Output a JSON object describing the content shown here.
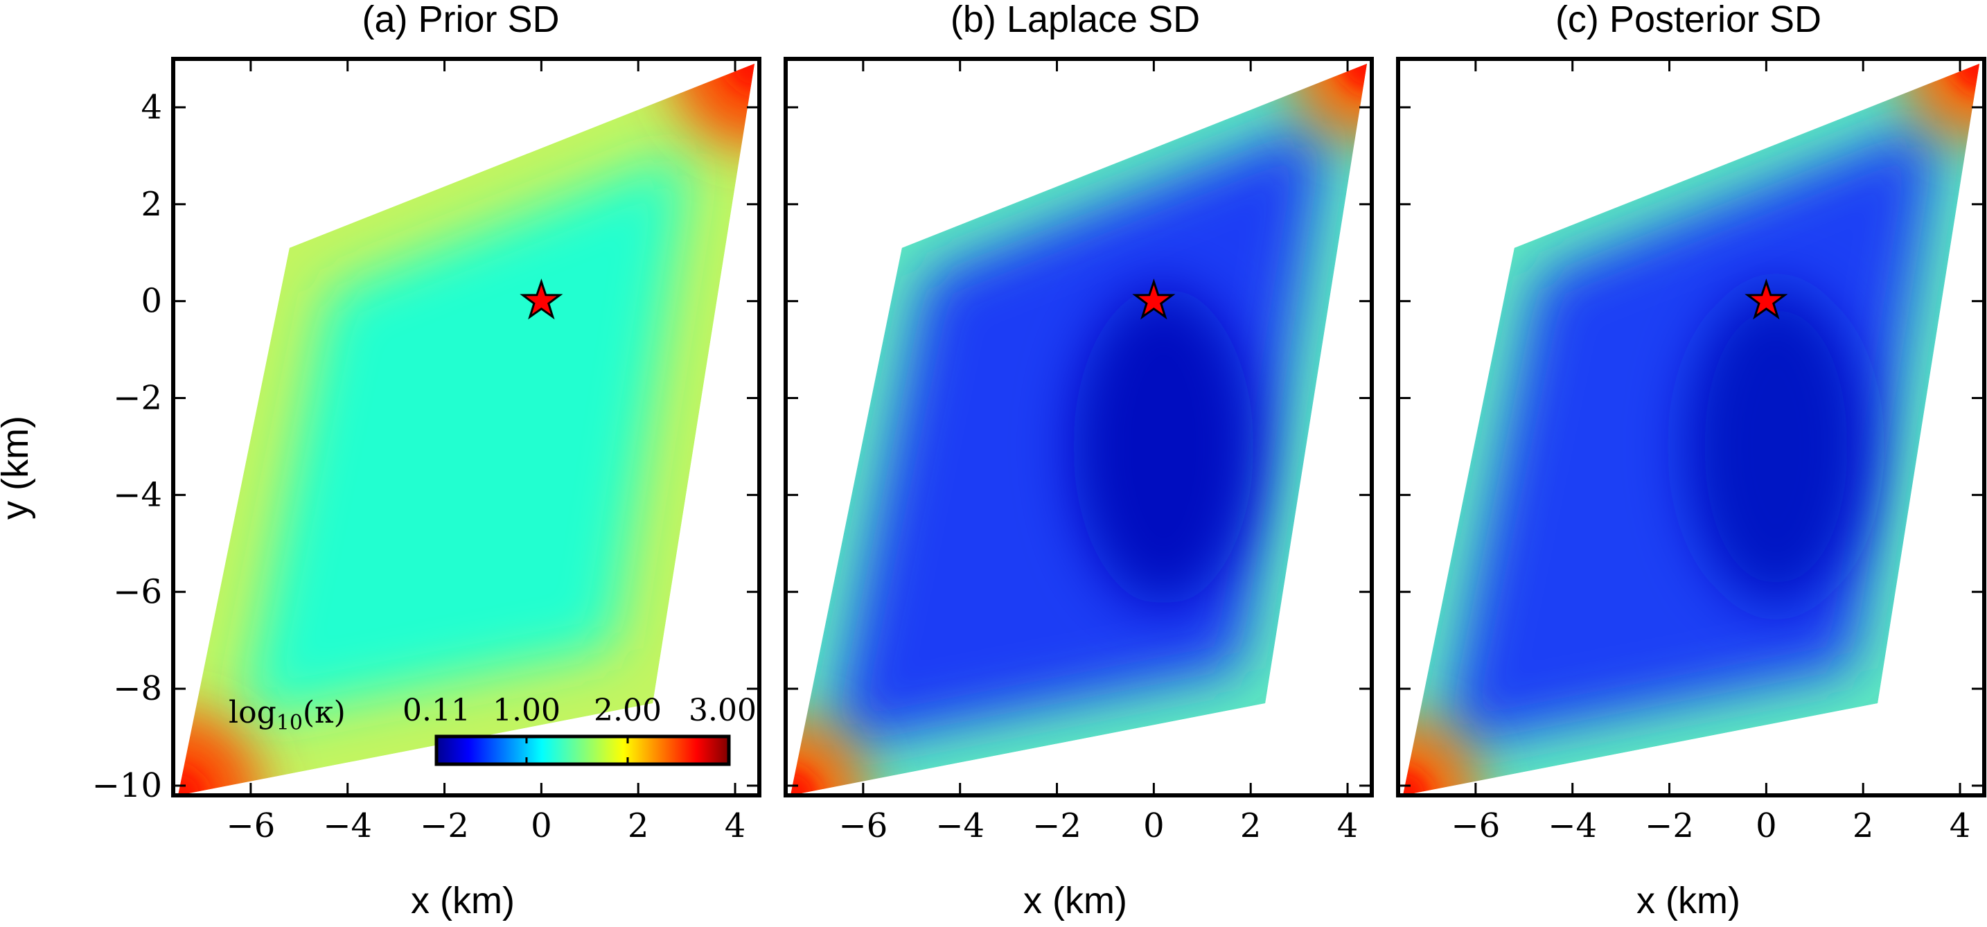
{
  "chart_data": [
    {
      "type": "heatmap",
      "panel": "a",
      "title": "(a) Prior SD",
      "xlabel": "x (km)",
      "ylabel": "y (km)",
      "xlim": [
        -7.6,
        4.5
      ],
      "ylim": [
        -10.2,
        5.0
      ],
      "xticks": [
        -6,
        -4,
        -2,
        0,
        2,
        4
      ],
      "xtick_labels": [
        "−6",
        "−4",
        "−2",
        "0",
        "2",
        "4"
      ],
      "yticks": [
        4,
        2,
        0,
        -2,
        -4,
        -6,
        -8,
        -10
      ],
      "ytick_labels": [
        "4",
        "2",
        "0",
        "−2",
        "−4",
        "−6",
        "−8",
        "−10"
      ],
      "region_vertices_km": [
        [
          -5.2,
          1.1
        ],
        [
          4.4,
          4.9
        ],
        [
          2.3,
          -8.3
        ],
        [
          -7.5,
          -10.2
        ]
      ],
      "field_description": "nearly uniform cyan interior (log10 kappa ~ 1.3) rising to yellow-green near edges and orange/red at the two acute corners",
      "event_marker": {
        "symbol": "star",
        "x": 0,
        "y": 0,
        "color": "#ff0000"
      },
      "colorbar": {
        "label": "log₁₀(κ)",
        "label_base": "log",
        "label_sub": "10",
        "label_arg": "(κ)",
        "range": [
          0.11,
          3.0
        ],
        "tick_values": [
          0.11,
          1.0,
          2.0,
          3.0
        ],
        "tick_labels": [
          "0.11",
          "1.00",
          "2.00",
          "3.00"
        ],
        "colormap": "jet"
      }
    },
    {
      "type": "heatmap",
      "panel": "b",
      "title": "(b) Laplace SD",
      "xlabel": "x (km)",
      "xlim": [
        -7.6,
        4.5
      ],
      "ylim": [
        -10.2,
        5.0
      ],
      "xticks": [
        -6,
        -4,
        -2,
        0,
        2,
        4
      ],
      "xtick_labels": [
        "−6",
        "−4",
        "−2",
        "0",
        "2",
        "4"
      ],
      "region_vertices_km": [
        [
          -5.2,
          1.1
        ],
        [
          4.4,
          4.9
        ],
        [
          2.3,
          -8.3
        ],
        [
          -7.5,
          -10.2
        ]
      ],
      "field_description": "mostly dark blue (log10 kappa ~ 0.2-0.4) with a darker blue core below the star; cyan/green toward the edges and orange/red at the acute corners",
      "event_marker": {
        "symbol": "star",
        "x": 0,
        "y": 0,
        "color": "#ff0000"
      }
    },
    {
      "type": "heatmap",
      "panel": "c",
      "title": "(c) Posterior SD",
      "xlabel": "x (km)",
      "xlim": [
        -7.6,
        4.5
      ],
      "ylim": [
        -10.2,
        5.0
      ],
      "xticks": [
        -6,
        -4,
        -2,
        0,
        2,
        4
      ],
      "xtick_labels": [
        "−6",
        "−4",
        "−2",
        "0",
        "2",
        "4"
      ],
      "region_vertices_km": [
        [
          -5.2,
          1.1
        ],
        [
          4.4,
          4.9
        ],
        [
          2.3,
          -8.3
        ],
        [
          -7.5,
          -10.2
        ]
      ],
      "field_description": "nearly identical to the Laplace SD panel: dark blue interior, cyan/green edges, orange/red acute corners",
      "event_marker": {
        "symbol": "star",
        "x": 0,
        "y": 0,
        "color": "#ff0000"
      }
    }
  ],
  "colors": {
    "axes": "#000000",
    "background": "#ffffff",
    "star_fill": "#ff0000",
    "star_edge": "#000000"
  }
}
